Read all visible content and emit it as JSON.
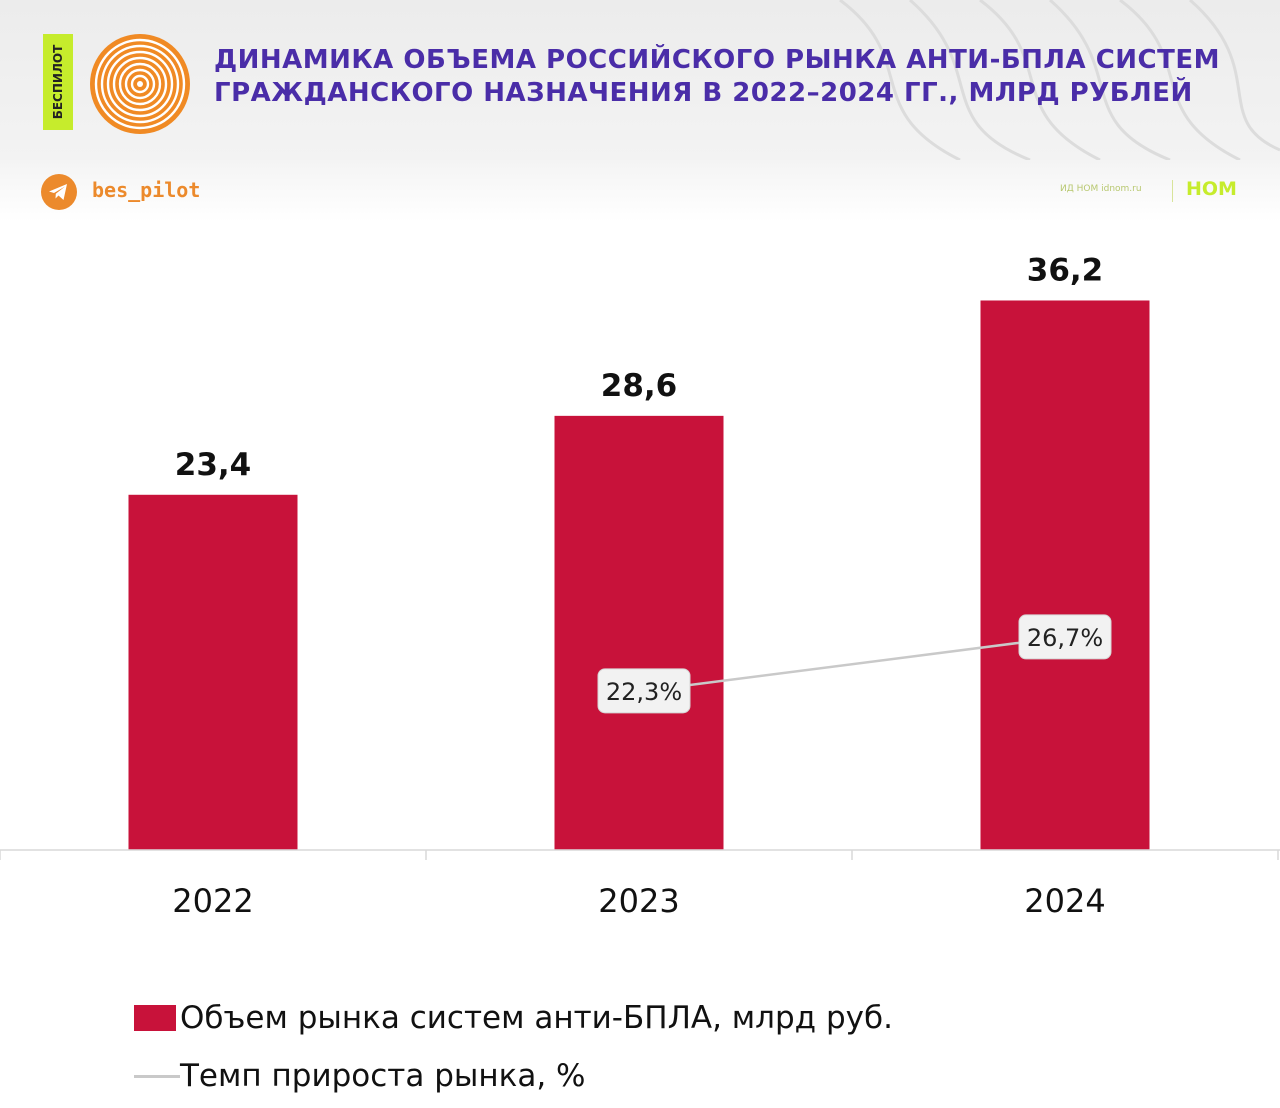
{
  "header": {
    "tag_text": "БЕСПИЛОТ",
    "title_line1": "ДИНАМИКА ОБЪЕМА РОССИЙСКОГО РЫНКА АНТИ-БПЛА СИСТЕМ",
    "title_line2": "ГРАЖДАНСКОГО НАЗНАЧЕНИЯ В 2022–2024 ГГ., МЛРД РУБЛЕЙ",
    "telegram_handle": "bes_pilot",
    "publisher_text": "ИД НОМ idnom.ru",
    "publisher_logo": "НОМ",
    "icons": [
      "concentric-circles-logo-icon",
      "telegram-icon"
    ]
  },
  "colors": {
    "bar": "#c8123a",
    "title": "#4a2da8",
    "accent_orange": "#ec8a2c",
    "accent_lime": "#c6ec2c",
    "line": "#c9c9c9"
  },
  "chart_data": {
    "type": "bar",
    "title": "ДИНАМИКА ОБЪЕМА РОССИЙСКОГО РЫНКА АНТИ-БПЛА СИСТЕМ ГРАЖДАНСКОГО НАЗНАЧЕНИЯ В 2022–2024 ГГ., МЛРД РУБЛЕЙ",
    "categories": [
      "2022",
      "2023",
      "2024"
    ],
    "series": [
      {
        "name": "Объем рынка систем анти-БПЛА, млрд руб.",
        "type": "bar",
        "values": [
          23.4,
          28.6,
          36.2
        ],
        "labels": [
          "23,4",
          "28,6",
          "36,2"
        ]
      },
      {
        "name": "Темп прироста рынка, %",
        "type": "line",
        "values": [
          null,
          22.3,
          26.7
        ],
        "labels": [
          "",
          "22,3%",
          "26,7%"
        ]
      }
    ],
    "ylim": [
      0,
      38
    ],
    "grid": false,
    "legend_position": "bottom-left"
  },
  "legend": {
    "bar_label": "Объем рынка систем анти-БПЛА, млрд руб.",
    "line_label": "Темп прироста рынка, %"
  }
}
